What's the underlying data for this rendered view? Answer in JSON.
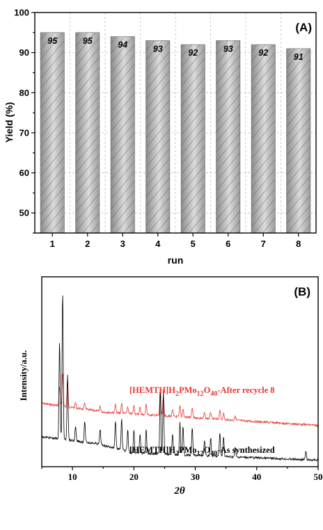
{
  "chart_data": [
    {
      "type": "bar",
      "panel_label": "(A)",
      "xlabel": "run",
      "ylabel": "Yield (%)",
      "categories": [
        "1",
        "2",
        "3",
        "4",
        "5",
        "6",
        "7",
        "8"
      ],
      "values": [
        95,
        95,
        94,
        93,
        92,
        93,
        92,
        91
      ],
      "data_labels": [
        "95",
        "95",
        "94",
        "93",
        "92",
        "93",
        "92",
        "91"
      ],
      "ylim": [
        45,
        100
      ],
      "yticks": [
        50,
        60,
        70,
        80,
        90,
        100
      ],
      "grid": true,
      "bar_fill": "hatched grey gradient"
    },
    {
      "type": "line",
      "panel_label": "(B)",
      "xlabel": "2θ",
      "ylabel": "Intensity/a.u.",
      "xlim": [
        5,
        50
      ],
      "xticks": [
        10,
        20,
        30,
        40,
        50
      ],
      "series": [
        {
          "name": "[HEMTH]H2PMo12O40-After recycle 8",
          "name_parts": [
            "[HEMTH]H",
            "2",
            "PMo",
            "12",
            "O",
            "40",
            "-After recycle 8"
          ],
          "color": "#e53935",
          "peaks": [
            [
              7.9,
              28
            ],
            [
              8.4,
              48
            ],
            [
              9.2,
              40
            ],
            [
              10.5,
              8
            ],
            [
              12,
              10
            ],
            [
              14.5,
              8
            ],
            [
              17,
              12
            ],
            [
              18,
              14
            ],
            [
              19,
              10
            ],
            [
              20,
              12
            ],
            [
              21,
              10
            ],
            [
              22,
              16
            ],
            [
              24.3,
              40
            ],
            [
              24.8,
              28
            ],
            [
              26.3,
              10
            ],
            [
              27.5,
              16
            ],
            [
              28,
              12
            ],
            [
              29.5,
              14
            ],
            [
              31.5,
              8
            ],
            [
              32.5,
              10
            ],
            [
              34,
              14
            ],
            [
              34.6,
              10
            ],
            [
              36.5,
              6
            ]
          ]
        },
        {
          "name": "[HEMTH]H2PMo12O40-As synthesized",
          "name_parts": [
            "[HEMTH]H",
            "2",
            "PMo",
            "12",
            "O",
            "40",
            "-As synthesized"
          ],
          "color": "#000000",
          "peaks": [
            [
              7.9,
              140
            ],
            [
              8.4,
              212
            ],
            [
              9.2,
              95
            ],
            [
              10.5,
              20
            ],
            [
              12,
              30
            ],
            [
              14.5,
              22
            ],
            [
              17,
              40
            ],
            [
              18,
              44
            ],
            [
              19,
              30
            ],
            [
              20,
              34
            ],
            [
              21,
              28
            ],
            [
              22,
              34
            ],
            [
              24.3,
              96
            ],
            [
              24.8,
              90
            ],
            [
              26.3,
              30
            ],
            [
              27.5,
              46
            ],
            [
              28,
              40
            ],
            [
              29.5,
              40
            ],
            [
              31.5,
              22
            ],
            [
              32.5,
              26
            ],
            [
              34,
              34
            ],
            [
              34.6,
              30
            ],
            [
              36.5,
              14
            ],
            [
              48,
              12
            ]
          ]
        }
      ]
    }
  ]
}
